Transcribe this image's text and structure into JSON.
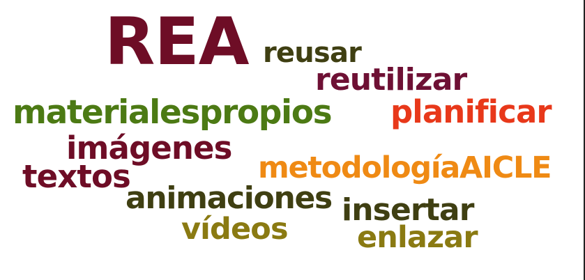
{
  "words": {
    "rea": {
      "text": "REA",
      "color": "#6e0d26"
    },
    "reusar": {
      "text": "reusar",
      "color": "#3f3f12"
    },
    "reutilizar": {
      "text": "reutilizar",
      "color": "#6e1034"
    },
    "materiales": {
      "text": "materialespropios",
      "color": "#4c7a14"
    },
    "planificar": {
      "text": "planificar",
      "color": "#e8381a"
    },
    "imagenes": {
      "text": "imágenes",
      "color": "#6e0d26"
    },
    "textos": {
      "text": "textos",
      "color": "#6e0d26"
    },
    "metodologia": {
      "text": "metodologíaAICLE",
      "color": "#ef8a14"
    },
    "animaciones": {
      "text": "animaciones",
      "color": "#3f3f12"
    },
    "insertar": {
      "text": "insertar",
      "color": "#3f3f12"
    },
    "videos": {
      "text": "vídeos",
      "color": "#8a7a12"
    },
    "enlazar": {
      "text": "enlazar",
      "color": "#8a7a12"
    }
  }
}
